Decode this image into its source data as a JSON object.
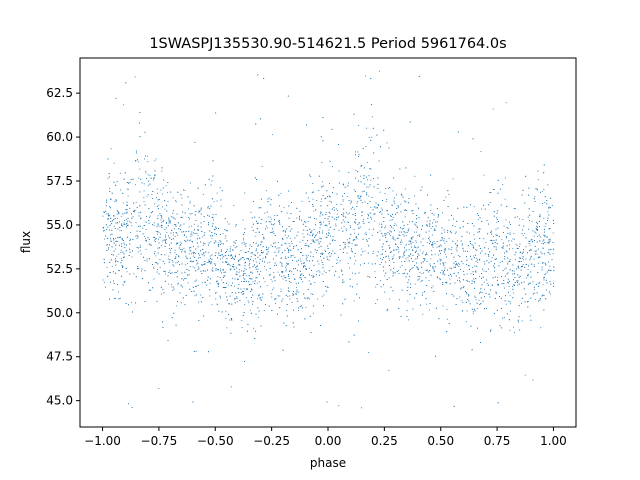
{
  "chart_data": {
    "type": "scatter",
    "title": "1SWASPJ135530.90-514621.5 Period 5961764.0s",
    "xlabel": "phase",
    "ylabel": "flux",
    "xlim": [
      -1.1,
      1.1
    ],
    "ylim": [
      43.5,
      64.5
    ],
    "xticks": [
      -1.0,
      -0.75,
      -0.5,
      -0.25,
      0.0,
      0.25,
      0.5,
      0.75,
      1.0
    ],
    "xtick_labels": [
      "−1.00",
      "−0.75",
      "−0.50",
      "−0.25",
      "0.00",
      "0.25",
      "0.50",
      "0.75",
      "1.00"
    ],
    "yticks": [
      45.0,
      47.5,
      50.0,
      52.5,
      55.0,
      57.5,
      60.0,
      62.5
    ],
    "ytick_labels": [
      "45.0",
      "47.5",
      "50.0",
      "52.5",
      "55.0",
      "57.5",
      "60.0",
      "62.5"
    ],
    "grid": false,
    "marker_color": "#1f77b4",
    "series": [
      {
        "profile": [
          {
            "x": -1.0,
            "y": 54.3,
            "spread": 1.6
          },
          {
            "x": -0.9,
            "y": 54.5,
            "spread": 2.0
          },
          {
            "x": -0.83,
            "y": 55.8,
            "spread": 2.4
          },
          {
            "x": -0.75,
            "y": 54.4,
            "spread": 1.8
          },
          {
            "x": -0.62,
            "y": 53.6,
            "spread": 1.5
          },
          {
            "x": -0.5,
            "y": 53.4,
            "spread": 1.6
          },
          {
            "x": -0.4,
            "y": 52.3,
            "spread": 1.5
          },
          {
            "x": -0.28,
            "y": 53.4,
            "spread": 1.7
          },
          {
            "x": -0.15,
            "y": 53.0,
            "spread": 1.6
          },
          {
            "x": -0.02,
            "y": 54.2,
            "spread": 1.8
          },
          {
            "x": 0.1,
            "y": 54.6,
            "spread": 2.0
          },
          {
            "x": 0.17,
            "y": 55.8,
            "spread": 2.4
          },
          {
            "x": 0.25,
            "y": 54.4,
            "spread": 1.8
          },
          {
            "x": 0.38,
            "y": 53.6,
            "spread": 1.5
          },
          {
            "x": 0.5,
            "y": 53.4,
            "spread": 1.6
          },
          {
            "x": 0.6,
            "y": 52.3,
            "spread": 1.5
          },
          {
            "x": 0.72,
            "y": 53.4,
            "spread": 1.7
          },
          {
            "x": 0.85,
            "y": 53.0,
            "spread": 1.6
          },
          {
            "x": 1.0,
            "y": 54.2,
            "spread": 1.8
          }
        ],
        "outlier_range": [
          44.5,
          63.8
        ]
      }
    ]
  }
}
